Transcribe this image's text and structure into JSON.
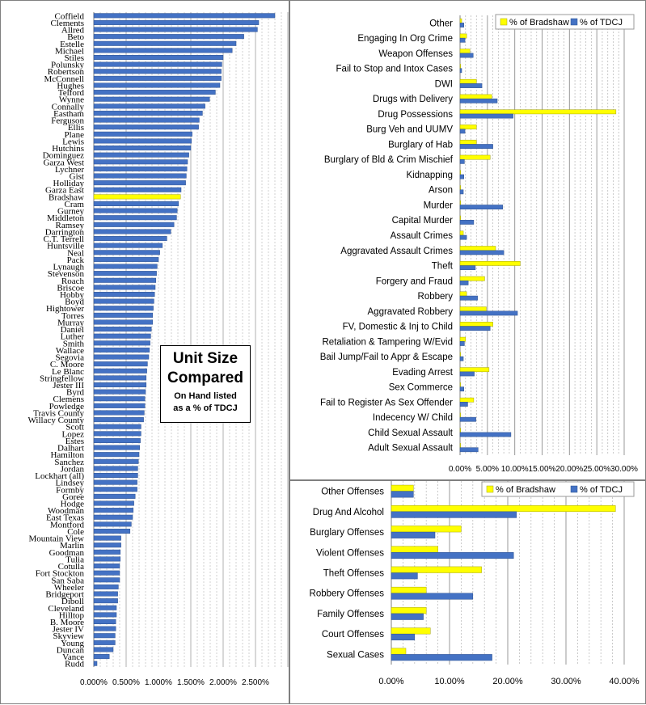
{
  "colors": {
    "tdcj": "#4472c4",
    "bradshaw": "#ffff00",
    "grid": "#b7b7b7"
  },
  "left_overlay": {
    "title_line1": "Unit Size",
    "title_line2": "Compared",
    "subtitle_line1": "On Hand listed",
    "subtitle_line2": "as a % of TDCJ"
  },
  "chart_data": [
    {
      "type": "bar",
      "orientation": "horizontal",
      "title": "Unit Size Compared",
      "subtitle": "On Hand listed as a % of TDCJ",
      "highlight_category": "Bradshaw",
      "categories": [
        "Coffield",
        "Clements",
        "Allred",
        "Beto",
        "Estelle",
        "Michael",
        "Stiles",
        "Polunsky",
        "Robertson",
        "McConnell",
        "Hughes",
        "Telford",
        "Wynne",
        "Connally",
        "Eastham",
        "Ferguson",
        "Ellis",
        "Plane",
        "Lewis",
        "Hutchins",
        "Dominguez",
        "Garza West",
        "Lychner",
        "Gist",
        "Holliday",
        "Garza East",
        "Bradshaw",
        "Cram",
        "Gurney",
        "Middleton",
        "Ramsey",
        "Darrington",
        "C.T. Terrell",
        "Huntsville",
        "Neal",
        "Pack",
        "Lynaugh",
        "Stevenson",
        "Roach",
        "Briscoe",
        "Hobby",
        "Boyd",
        "Hightower",
        "Torres",
        "Murray",
        "Daniel",
        "Luther",
        "Smith",
        "Wallace",
        "Segovia",
        "C. Moore",
        "Le Blanc",
        "Stringfellow",
        "Jester III",
        "Byrd",
        "Clemens",
        "Powledge",
        "Travis County",
        "Willacy County",
        "Scott",
        "Lopez",
        "Estes",
        "Dalhart",
        "Hamilton",
        "Sanchez",
        "Jordan",
        "Lockhart (all)",
        "Lindsey",
        "Formby",
        "Goree",
        "Hodge",
        "Woodman",
        "East Texas",
        "Montford",
        "Cole",
        "Mountain View",
        "Marlin",
        "Goodman",
        "Tulia",
        "Cotulla",
        "Fort Stockton",
        "San Saba",
        "Wheeler",
        "Bridgeport",
        "Diboll",
        "Cleveland",
        "Hilltop",
        "B. Moore",
        "Jester IV",
        "Skyview",
        "Young",
        "Duncan",
        "Vance",
        "Rudd"
      ],
      "values": [
        2.8,
        2.55,
        2.53,
        2.32,
        2.2,
        2.14,
        2.0,
        1.98,
        1.97,
        1.97,
        1.95,
        1.88,
        1.79,
        1.72,
        1.68,
        1.63,
        1.62,
        1.52,
        1.51,
        1.5,
        1.47,
        1.45,
        1.44,
        1.43,
        1.42,
        1.35,
        1.34,
        1.31,
        1.29,
        1.28,
        1.24,
        1.19,
        1.13,
        1.06,
        1.02,
        1.0,
        0.98,
        0.97,
        0.96,
        0.95,
        0.94,
        0.93,
        0.92,
        0.91,
        0.91,
        0.89,
        0.88,
        0.87,
        0.86,
        0.85,
        0.83,
        0.82,
        0.81,
        0.81,
        0.8,
        0.79,
        0.79,
        0.78,
        0.77,
        0.73,
        0.73,
        0.72,
        0.71,
        0.7,
        0.69,
        0.68,
        0.68,
        0.67,
        0.67,
        0.64,
        0.62,
        0.61,
        0.6,
        0.58,
        0.56,
        0.42,
        0.42,
        0.41,
        0.41,
        0.4,
        0.4,
        0.4,
        0.38,
        0.37,
        0.37,
        0.35,
        0.35,
        0.34,
        0.34,
        0.33,
        0.33,
        0.3,
        0.24,
        0.05
      ],
      "xlim": [
        0,
        3.0
      ],
      "xticks": [
        "0.000%",
        "0.500%",
        "1.000%",
        "1.500%",
        "2.000%",
        "2.500%"
      ],
      "xtick_values": [
        0,
        0.5,
        1.0,
        1.5,
        2.0,
        2.5
      ],
      "grid": true
    },
    {
      "type": "bar",
      "orientation": "horizontal",
      "legend_position": "top-right",
      "categories": [
        "Other",
        "Engaging In Org Crime",
        "Weapon Offenses",
        "Fail to Stop and Intox Cases",
        "DWI",
        "Drugs with Delivery",
        "Drug Possessions",
        "Burg Veh and UUMV",
        "Burglary of Hab",
        "Burglary of Bld & Crim Mischief",
        "Kidnapping",
        "Arson",
        "Murder",
        "Capital Murder",
        "Assault Crimes",
        "Aggravated Assault Crimes",
        "Theft",
        "Forgery and Fraud",
        "Robbery",
        "Aggravated Robbery",
        "FV, Domestic & Inj to Child",
        "Retaliation & Tampering  W/Evid",
        "Bail Jump/Fail to Appr & Escape",
        "Evading Arrest",
        "Sex Commerce",
        "Fail to Register As Sex Offender",
        "Indecency W/ Child",
        "Child Sexual Assault",
        "Adult Sexual Assault"
      ],
      "series": [
        {
          "name": "% of Bradshaw",
          "values": [
            0.3,
            1.2,
            1.8,
            0.1,
            3.0,
            5.8,
            28.5,
            3.0,
            3.0,
            5.5,
            0.1,
            0.1,
            0.1,
            0.1,
            0.6,
            6.5,
            11.0,
            4.5,
            1.2,
            4.8,
            6.0,
            1.0,
            0.1,
            5.3,
            0.1,
            2.5,
            0.1,
            0.1,
            0.1
          ]
        },
        {
          "name": "% of TDCJ",
          "values": [
            0.7,
            0.9,
            2.4,
            0.3,
            4.0,
            6.8,
            9.7,
            0.9,
            6.0,
            0.8,
            0.7,
            0.6,
            7.8,
            2.5,
            1.2,
            8.0,
            2.8,
            1.5,
            3.2,
            10.5,
            5.5,
            0.8,
            0.6,
            2.6,
            0.7,
            1.4,
            2.9,
            9.3,
            3.3
          ]
        }
      ],
      "xlim": [
        0,
        30
      ],
      "xticks": [
        "0.00%",
        "5.00%",
        "10.00%",
        "15.00%",
        "20.00%",
        "25.00%",
        "30.00%"
      ],
      "xtick_values": [
        0,
        5,
        10,
        15,
        20,
        25,
        30
      ],
      "grid": true
    },
    {
      "type": "bar",
      "orientation": "horizontal",
      "legend_position": "top-right",
      "categories": [
        "Other Offenses",
        "Drug And Alcohol",
        "Burglary Offenses",
        "Violent Offenses",
        "Theft Offenses",
        "Robbery Offenses",
        "Family Offenses",
        "Court Offenses",
        "Sexual Cases"
      ],
      "series": [
        {
          "name": "% of Bradshaw",
          "values": [
            3.8,
            38.5,
            12.0,
            8.0,
            15.5,
            6.0,
            6.0,
            6.7,
            2.5
          ]
        },
        {
          "name": "% of TDCJ",
          "values": [
            3.8,
            21.5,
            7.5,
            21.0,
            4.5,
            14.0,
            5.5,
            4.0,
            17.3
          ]
        }
      ],
      "xlim": [
        0,
        40
      ],
      "xticks": [
        "0.00%",
        "10.00%",
        "20.00%",
        "30.00%",
        "40.00%"
      ],
      "xtick_values": [
        0,
        10,
        20,
        30,
        40
      ],
      "grid": true
    }
  ]
}
